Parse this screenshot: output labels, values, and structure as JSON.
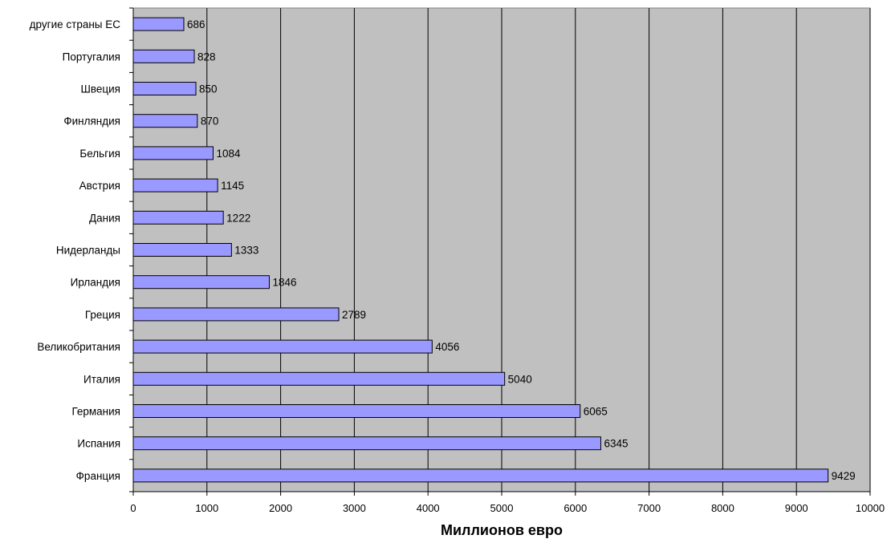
{
  "chart_data": {
    "type": "bar",
    "orientation": "horizontal",
    "categories": [
      "другие страны ЕС",
      "Португалия",
      "Швеция",
      "Финляндия",
      "Бельгия",
      "Австрия",
      "Дания",
      "Нидерланды",
      "Ирландия",
      "Греция",
      "Великобритания",
      "Италия",
      "Германия",
      "Испания",
      "Франция"
    ],
    "values": [
      686,
      828,
      850,
      870,
      1084,
      1145,
      1222,
      1333,
      1846,
      2789,
      4056,
      5040,
      6065,
      6345,
      9429
    ],
    "title": "",
    "xlabel": "Миллионов евро",
    "ylabel": "",
    "xlim": [
      0,
      10000
    ],
    "xticks": [
      "0",
      "1000",
      "2000",
      "3000",
      "4000",
      "5000",
      "6000",
      "7000",
      "8000",
      "9000",
      "10000"
    ],
    "grid": "vertical",
    "data_labels": true,
    "colors": {
      "plot_background": "#c0c0c0",
      "bar_fill": "#9999ff",
      "bar_stroke": "#000000",
      "grid": "#000000"
    }
  }
}
